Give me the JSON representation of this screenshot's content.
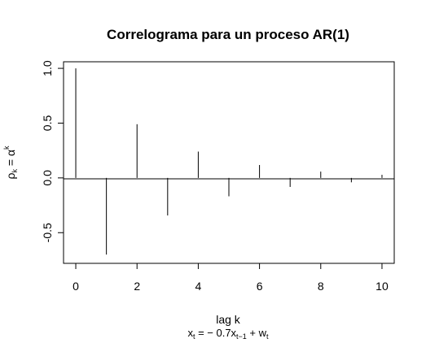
{
  "chart_data": {
    "type": "bar",
    "style": "spike",
    "title": "Correlograma para un proceso AR(1)",
    "xlabel": "lag k",
    "ylabel": {
      "base": "ρ",
      "base_sub": "k",
      "eq": " = α",
      "sup": "k"
    },
    "subtitle": {
      "x": "x",
      "x_sub": "t",
      "eq": " = − 0.7x",
      "x2_sub": "t−1",
      "plus": " + w",
      "w_sub": "t"
    },
    "x": [
      0,
      1,
      2,
      3,
      4,
      5,
      6,
      7,
      8,
      9,
      10
    ],
    "values": [
      1.0,
      -0.7,
      0.49,
      -0.343,
      0.2401,
      -0.16807,
      0.117649,
      -0.0823543,
      0.05764801,
      -0.04035361,
      0.02824752
    ],
    "xticks": [
      "0",
      "2",
      "4",
      "6",
      "8",
      "10"
    ],
    "yticks": [
      "-0.5",
      "0.0",
      "0.5",
      "1.0"
    ],
    "xlim": [
      -0.4,
      10.4
    ],
    "ylim": [
      -0.78,
      1.06
    ],
    "zero_line": true,
    "grid": false,
    "box": true
  }
}
